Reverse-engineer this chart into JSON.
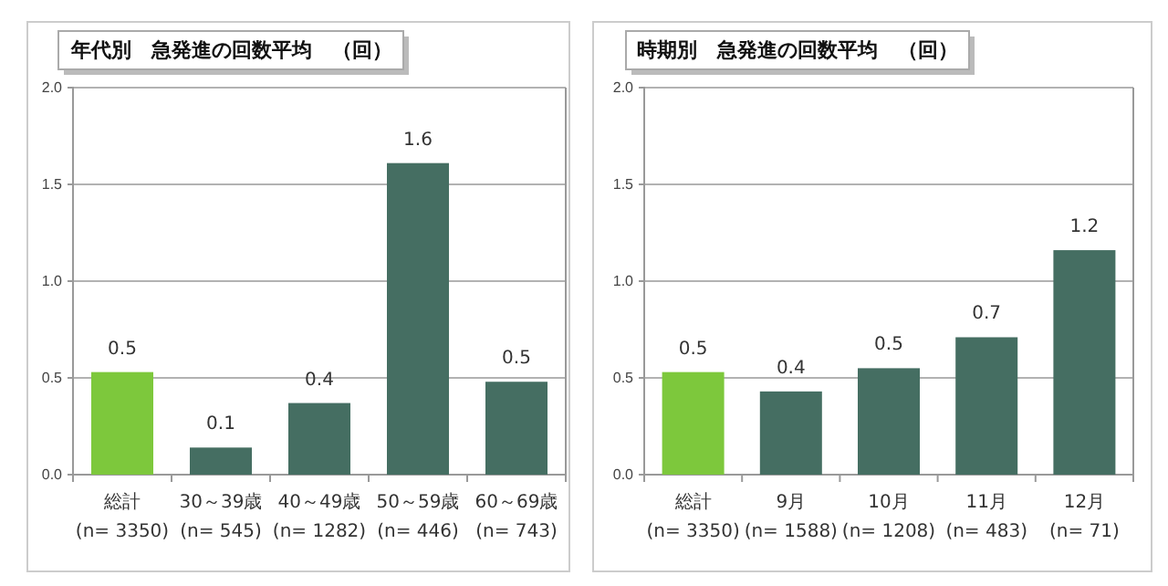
{
  "chart_data": [
    {
      "type": "bar",
      "title": "年代別　急発進の回数平均　（回）",
      "categories": [
        "総計\n(n= 3350)",
        "30～39歳\n(n= 545)",
        "40～49歳\n(n= 1282)",
        "50～59歳\n(n= 446)",
        "60～69歳\n(n= 743)"
      ],
      "values": [
        0.53,
        0.14,
        0.37,
        1.61,
        0.48
      ],
      "value_labels": [
        "0.5",
        "0.1",
        "0.4",
        "1.6",
        "0.5"
      ],
      "colors": [
        "#7dc83c",
        "#456e62",
        "#456e62",
        "#456e62",
        "#456e62"
      ],
      "ylim": [
        0,
        2
      ],
      "yticks": [
        {
          "value": 0,
          "label": "0.0"
        },
        {
          "value": 0.5,
          "label": "0.5"
        },
        {
          "value": 1,
          "label": "1.0"
        },
        {
          "value": 1.5,
          "label": "1.5"
        },
        {
          "value": 2,
          "label": "2.0"
        }
      ],
      "grid": "y"
    },
    {
      "type": "bar",
      "title": "時期別　急発進の回数平均　（回）",
      "categories": [
        "総計\n(n= 3350)",
        "9月\n(n= 1588)",
        "10月\n(n= 1208)",
        "11月\n(n= 483)",
        "12月\n(n= 71)"
      ],
      "values": [
        0.53,
        0.43,
        0.55,
        0.71,
        1.16
      ],
      "value_labels": [
        "0.5",
        "0.4",
        "0.5",
        "0.7",
        "1.2"
      ],
      "colors": [
        "#7dc83c",
        "#456e62",
        "#456e62",
        "#456e62",
        "#456e62"
      ],
      "ylim": [
        0,
        2
      ],
      "yticks": [
        {
          "value": 0,
          "label": "0.0"
        },
        {
          "value": 0.5,
          "label": "0.5"
        },
        {
          "value": 1,
          "label": "1.0"
        },
        {
          "value": 1.5,
          "label": "1.5"
        },
        {
          "value": 2,
          "label": "2.0"
        }
      ],
      "grid": "y"
    }
  ]
}
